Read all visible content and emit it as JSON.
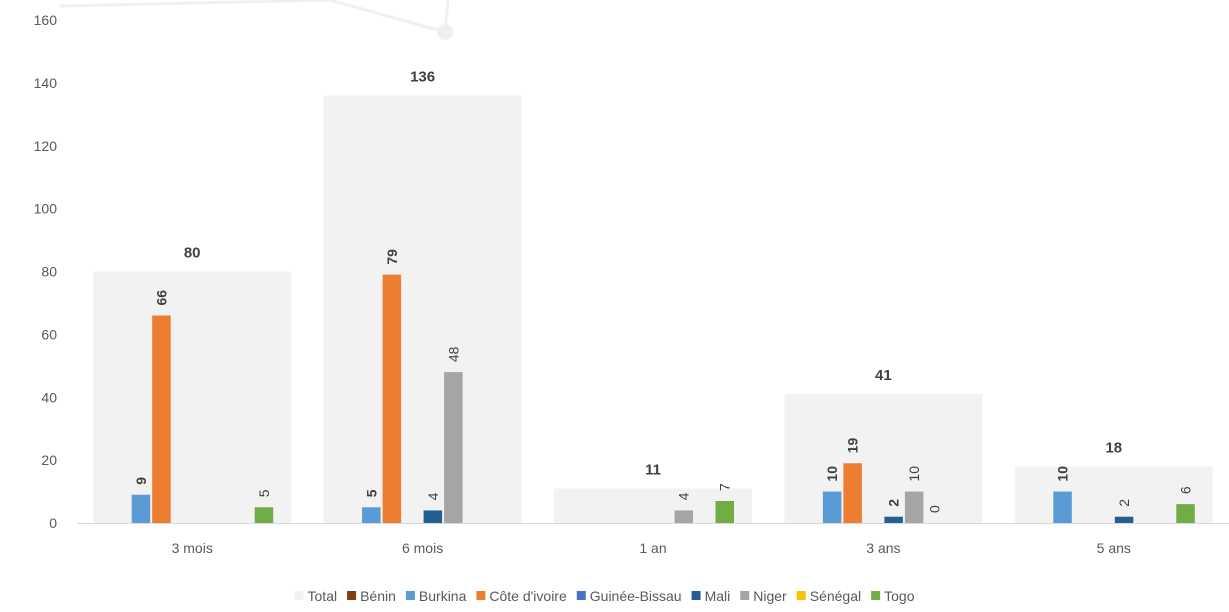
{
  "chart_data": {
    "type": "bar",
    "title": "",
    "xlabel": "",
    "ylabel": "",
    "ylim": [
      0,
      160
    ],
    "yticks": [
      0,
      20,
      40,
      60,
      80,
      100,
      120,
      140,
      160
    ],
    "grid": false,
    "legend_position": "bottom",
    "categories": [
      "3 mois",
      "6 mois",
      "1 an",
      "3 ans",
      "5 ans"
    ],
    "total_series": {
      "name": "Total",
      "color": "#f2f2f2",
      "values": [
        80,
        136,
        11,
        41,
        18
      ],
      "labels": [
        "80",
        "136",
        "11",
        "41",
        "18"
      ]
    },
    "series": [
      {
        "name": "Bénin",
        "color": "#843c0c",
        "values": [
          0,
          0,
          0,
          0,
          0
        ],
        "labels": [
          "",
          "",
          "",
          "",
          ""
        ]
      },
      {
        "name": "Burkina",
        "color": "#5b9bd5",
        "values": [
          9,
          5,
          0,
          10,
          10
        ],
        "labels": [
          "9",
          "5",
          "",
          "10",
          "10"
        ],
        "bold": [
          true,
          true,
          false,
          true,
          true
        ]
      },
      {
        "name": "Côte d'ivoire",
        "color": "#ed7d31",
        "values": [
          66,
          79,
          0,
          19,
          0
        ],
        "labels": [
          "66",
          "79",
          "",
          "19",
          ""
        ],
        "bold": [
          true,
          true,
          false,
          true,
          false
        ]
      },
      {
        "name": "Guinée-Bissau",
        "color": "#4472c4",
        "values": [
          0,
          0,
          0,
          0,
          0
        ],
        "labels": [
          "",
          "",
          "",
          "",
          ""
        ]
      },
      {
        "name": "Mali",
        "color": "#255e91",
        "values": [
          0,
          4,
          0,
          2,
          2
        ],
        "labels": [
          "",
          "4",
          "",
          "2",
          "2"
        ],
        "bold": [
          false,
          false,
          false,
          true,
          false
        ]
      },
      {
        "name": "Niger",
        "color": "#a5a5a5",
        "values": [
          0,
          48,
          4,
          10,
          0
        ],
        "labels": [
          "",
          "48",
          "4",
          "10",
          ""
        ],
        "bold": [
          false,
          false,
          false,
          false,
          false
        ]
      },
      {
        "name": "Sénégal",
        "color": "#ffc000",
        "values": [
          0,
          0,
          0,
          0,
          0
        ],
        "labels": [
          "",
          "",
          "",
          "0",
          ""
        ]
      },
      {
        "name": "Togo",
        "color": "#70ad47",
        "values": [
          5,
          0,
          7,
          0,
          6
        ],
        "labels": [
          "5",
          "",
          "7",
          "",
          "6"
        ],
        "bold": [
          false,
          false,
          false,
          false,
          false
        ]
      }
    ]
  }
}
